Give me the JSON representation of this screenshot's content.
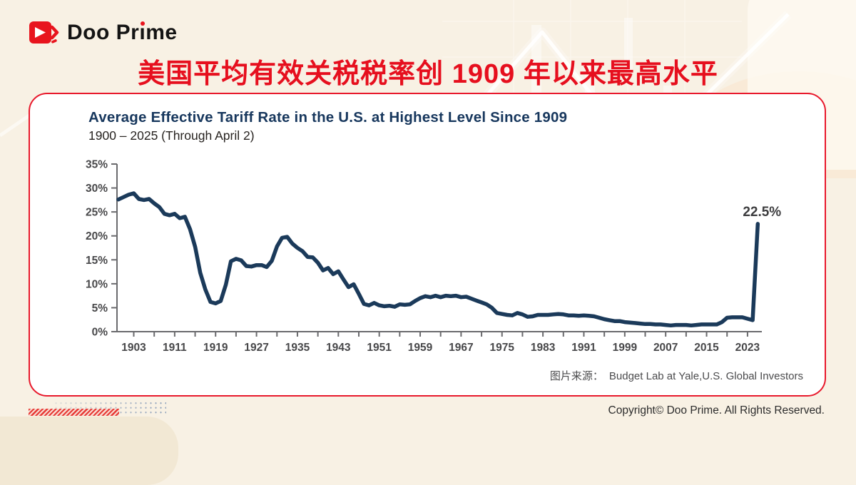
{
  "header": {
    "logo": {
      "part1": "Doo Pr",
      "dotless_i": "ı",
      "part2": "me"
    },
    "banner_title": "美国平均有效关税税率创 1909 年以来最高水平"
  },
  "card": {
    "chart_title": "Average Effective Tariff Rate in the U.S. at Highest Level Since 1909",
    "chart_subtitle": "1900 – 2025 (Through April 2)",
    "source_label": "图片来源：",
    "source_text": "Budget Lab at Yale,U.S. Global Investors"
  },
  "footer": {
    "copyright": "Copyright© Doo Prime. All Rights Reserved."
  },
  "colors": {
    "accent_red": "#e60f1e",
    "card_border_red": "#e8192c",
    "title_navy": "#17375d",
    "line_navy": "#1b3a5a",
    "background_beige": "#f8f1e4"
  },
  "chart_data": {
    "type": "line",
    "title": "Average Effective Tariff Rate in the U.S. at Highest Level Since 1909",
    "subtitle": "1900 – 2025 (Through April 2)",
    "x_start": 1900,
    "x_end": 2025,
    "x_step": 1,
    "values": [
      27.6,
      28.1,
      28.6,
      28.9,
      27.7,
      27.5,
      27.7,
      26.8,
      26.0,
      24.6,
      24.3,
      24.6,
      23.7,
      24.0,
      21.4,
      17.7,
      12.3,
      8.8,
      6.2,
      5.9,
      6.4,
      9.8,
      14.7,
      15.2,
      14.9,
      13.7,
      13.6,
      13.9,
      13.9,
      13.5,
      14.8,
      17.8,
      19.6,
      19.8,
      18.4,
      17.5,
      16.8,
      15.6,
      15.5,
      14.4,
      12.8,
      13.3,
      12.0,
      12.6,
      10.9,
      9.3,
      9.9,
      7.9,
      5.8,
      5.5,
      6.0,
      5.5,
      5.3,
      5.4,
      5.2,
      5.7,
      5.6,
      5.7,
      6.4,
      7.0,
      7.4,
      7.2,
      7.5,
      7.2,
      7.5,
      7.4,
      7.5,
      7.2,
      7.3,
      6.9,
      6.5,
      6.1,
      5.7,
      5.0,
      3.9,
      3.7,
      3.5,
      3.4,
      3.9,
      3.6,
      3.1,
      3.2,
      3.5,
      3.5,
      3.5,
      3.6,
      3.7,
      3.6,
      3.4,
      3.4,
      3.3,
      3.4,
      3.3,
      3.2,
      2.9,
      2.6,
      2.4,
      2.2,
      2.2,
      2.0,
      1.9,
      1.8,
      1.7,
      1.6,
      1.6,
      1.5,
      1.5,
      1.4,
      1.3,
      1.4,
      1.4,
      1.4,
      1.3,
      1.4,
      1.5,
      1.5,
      1.5,
      1.5,
      2.0,
      2.9,
      3.0,
      3.0,
      3.0,
      2.7,
      2.4,
      22.5
    ],
    "ylim": [
      0,
      35
    ],
    "yticks": [
      0,
      5,
      10,
      15,
      20,
      25,
      30,
      35
    ],
    "ytick_suffix": "%",
    "xtick_labels": [
      1903,
      1911,
      1919,
      1927,
      1935,
      1943,
      1951,
      1959,
      1967,
      1975,
      1983,
      1991,
      1999,
      2007,
      2015,
      2023
    ],
    "xticks_start": 1903,
    "xticks_end": 2023,
    "xtick_minor_step": 4,
    "annotation": {
      "text": "22.5%",
      "year": 2025,
      "value": 22.5
    },
    "grid": false,
    "legend": false,
    "line_color": "#1b3a5a",
    "axis_color": "#6a6a6d"
  }
}
